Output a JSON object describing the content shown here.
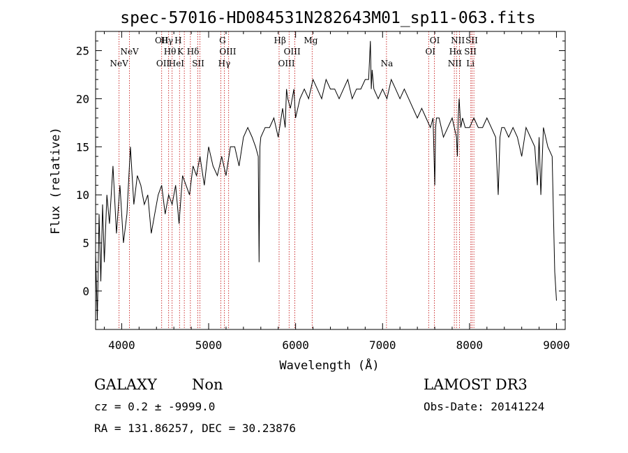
{
  "info": {
    "object_class": "GALAXY",
    "subclass": "Non",
    "cz": "cz = 0.2 ± -9999.0",
    "coords": "RA = 131.86257, DEC =  30.23876",
    "survey": "LAMOST DR3",
    "obs_date": "Obs-Date: 20141224"
  },
  "chart_data": {
    "type": "line",
    "title": "spec-57016-HD084531N282643M01_sp11-063.fits",
    "xlabel": "Wavelength (Å)",
    "ylabel": "Flux (relative)",
    "xlim": [
      3700,
      9100
    ],
    "ylim": [
      -4,
      27
    ],
    "xticks": [
      4000,
      5000,
      6000,
      7000,
      8000,
      9000
    ],
    "yticks": [
      0,
      5,
      10,
      15,
      20,
      25
    ],
    "grid": false,
    "colors": {
      "spectrum": "#000000",
      "line_marker": "#c00000",
      "frame": "#000000"
    },
    "line_markers": [
      {
        "label": "NeV",
        "x": 3970,
        "row": 2
      },
      {
        "label": "NeV",
        "x": 4090,
        "row": 1
      },
      {
        "label": "OII",
        "x": 4460,
        "row": 0
      },
      {
        "label": "Hγ",
        "x": 4520,
        "row": 0
      },
      {
        "label": "H",
        "x": 4650,
        "row": 0
      },
      {
        "label": "Hθ",
        "x": 4555,
        "row": 1
      },
      {
        "label": "K",
        "x": 4675,
        "row": 1
      },
      {
        "label": "Hδ",
        "x": 4820,
        "row": 1
      },
      {
        "label": "OII",
        "x": 4475,
        "row": 2
      },
      {
        "label": "HeI",
        "x": 4630,
        "row": 2
      },
      {
        "label": "SII",
        "x": 4880,
        "row": 2
      },
      {
        "label": "G",
        "x": 5160,
        "row": 0
      },
      {
        "label": "OIII",
        "x": 5220,
        "row": 1
      },
      {
        "label": "Hγ",
        "x": 5180,
        "row": 2
      },
      {
        "label": "Hβ",
        "x": 5820,
        "row": 0
      },
      {
        "label": "Mg",
        "x": 6175,
        "row": 0
      },
      {
        "label": "OIII",
        "x": 5960,
        "row": 1
      },
      {
        "label": "OIII",
        "x": 5895,
        "row": 2
      },
      {
        "label": "Na",
        "x": 7050,
        "row": 2
      },
      {
        "label": "OI",
        "x": 7600,
        "row": 0
      },
      {
        "label": "OI",
        "x": 7550,
        "row": 1
      },
      {
        "label": "NII",
        "x": 7865,
        "row": 0
      },
      {
        "label": "SII",
        "x": 8025,
        "row": 0
      },
      {
        "label": "Hα",
        "x": 7840,
        "row": 1
      },
      {
        "label": "SII",
        "x": 8010,
        "row": 1
      },
      {
        "label": "NII",
        "x": 7830,
        "row": 2
      },
      {
        "label": "Li",
        "x": 8010,
        "row": 2
      }
    ],
    "line_positions": [
      3970,
      4090,
      4460,
      4540,
      4580,
      4665,
      4720,
      4790,
      4875,
      4900,
      5140,
      5180,
      5230,
      5810,
      5925,
      5990,
      6190,
      7045,
      7530,
      7595,
      7825,
      7850,
      7885,
      8015,
      8030,
      8050
    ],
    "series": [
      {
        "x": [
          3700,
          3720,
          3740,
          3760,
          3780,
          3800,
          3830,
          3860,
          3900,
          3940,
          3980,
          4020,
          4060,
          4100,
          4140,
          4180,
          4220,
          4260,
          4300,
          4340,
          4380,
          4420,
          4460,
          4500,
          4540,
          4580,
          4620,
          4660,
          4700,
          4740,
          4780,
          4820,
          4860,
          4900,
          4950,
          5000,
          5050,
          5100,
          5150,
          5200,
          5250,
          5300,
          5350,
          5400,
          5450,
          5500,
          5540,
          5570,
          5580,
          5590,
          5600,
          5650,
          5700,
          5750,
          5800,
          5850,
          5880,
          5895,
          5910,
          5940,
          5980,
          6000,
          6050,
          6100,
          6150,
          6200,
          6250,
          6300,
          6350,
          6400,
          6450,
          6500,
          6550,
          6600,
          6650,
          6700,
          6750,
          6800,
          6840,
          6860,
          6870,
          6880,
          6900,
          6950,
          7000,
          7050,
          7100,
          7150,
          7200,
          7250,
          7300,
          7350,
          7400,
          7450,
          7500,
          7550,
          7580,
          7600,
          7610,
          7620,
          7650,
          7700,
          7750,
          7800,
          7850,
          7860,
          7870,
          7880,
          7900,
          7920,
          7950,
          8000,
          8050,
          8100,
          8150,
          8200,
          8250,
          8300,
          8330,
          8350,
          8370,
          8400,
          8450,
          8500,
          8550,
          8600,
          8650,
          8700,
          8750,
          8780,
          8800,
          8820,
          8850,
          8900,
          8950,
          8980,
          9000
        ],
        "y": [
          4,
          -3,
          8,
          1,
          9,
          3,
          10,
          7,
          13,
          6,
          11,
          5,
          8,
          15,
          9,
          12,
          11,
          9,
          10,
          6,
          8,
          10,
          11,
          8,
          10,
          9,
          11,
          7,
          12,
          11,
          10,
          13,
          12,
          14,
          11,
          15,
          13,
          12,
          14,
          12,
          15,
          15,
          13,
          16,
          17,
          16,
          15,
          14,
          3,
          15,
          16,
          17,
          17,
          18,
          16,
          19,
          17,
          21,
          20,
          19,
          21,
          18,
          20,
          21,
          20,
          22,
          21,
          20,
          22,
          21,
          21,
          20,
          21,
          22,
          20,
          21,
          21,
          22,
          22,
          26,
          21,
          23,
          21,
          20,
          21,
          20,
          22,
          21,
          20,
          21,
          20,
          19,
          18,
          19,
          18,
          17,
          18,
          11,
          17,
          18,
          18,
          16,
          17,
          18,
          16,
          14,
          18,
          20,
          17,
          18,
          17,
          17,
          18,
          17,
          17,
          18,
          17,
          16,
          10,
          16,
          17,
          17,
          16,
          17,
          16,
          14,
          17,
          16,
          15,
          11,
          16,
          10,
          17,
          15,
          14,
          2,
          -1
        ]
      }
    ]
  }
}
